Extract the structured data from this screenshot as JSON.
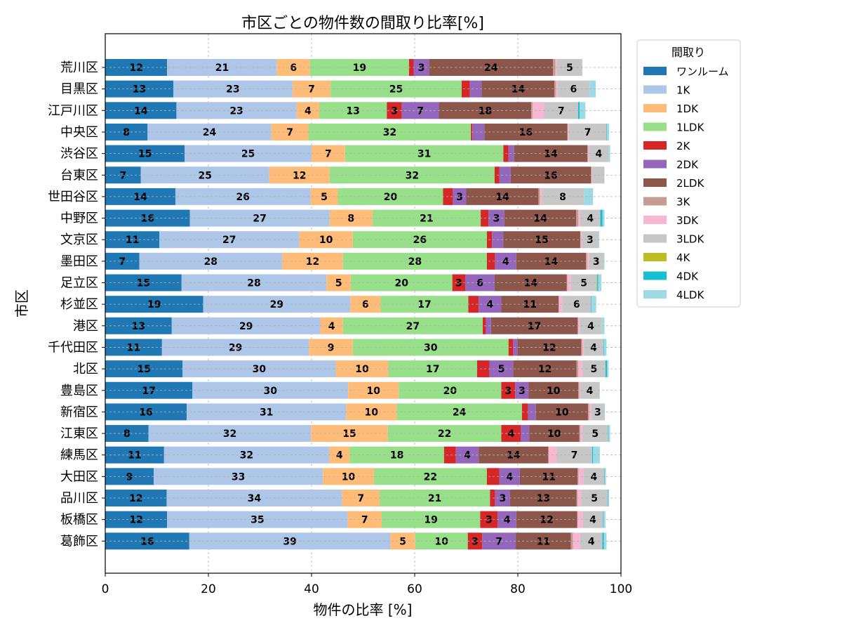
{
  "chart_data": {
    "type": "bar",
    "orientation": "horizontal",
    "stacked": true,
    "title": "市区ごとの物件数の間取り比率[%]",
    "xlabel": "物件の比率 [%]",
    "ylabel": "市区",
    "xlim": [
      0,
      100
    ],
    "xticks": [
      0,
      20,
      40,
      60,
      80,
      100
    ],
    "grid": true,
    "legend": {
      "title": "間取り",
      "placement": "outside-top-right"
    },
    "categories": [
      "荒川区",
      "目黒区",
      "江戸川区",
      "中央区",
      "渋谷区",
      "台東区",
      "世田谷区",
      "中野区",
      "文京区",
      "墨田区",
      "足立区",
      "杉並区",
      "港区",
      "千代田区",
      "北区",
      "豊島区",
      "新宿区",
      "江東区",
      "練馬区",
      "大田区",
      "品川区",
      "板橋区",
      "葛飾区"
    ],
    "series": [
      {
        "name": "ワンルーム",
        "color": "#1f77b4",
        "values": [
          12.0,
          13.2,
          13.8,
          8.2,
          15.4,
          6.9,
          13.6,
          16.4,
          10.5,
          6.6,
          14.8,
          19.0,
          12.9,
          11.0,
          15.0,
          16.9,
          15.8,
          8.4,
          11.4,
          9.4,
          11.9,
          12.0,
          16.3
        ]
      },
      {
        "name": "1K",
        "color": "#aec7e8",
        "values": [
          21.3,
          23.1,
          23.3,
          24.0,
          24.6,
          24.9,
          26.2,
          27.1,
          27.1,
          27.7,
          28.1,
          28.5,
          28.8,
          28.5,
          29.7,
          30.2,
          30.9,
          31.5,
          32.0,
          32.8,
          34.0,
          35.0,
          39.0
        ]
      },
      {
        "name": "1DK",
        "color": "#ffbb78",
        "values": [
          6.4,
          7.4,
          4.4,
          7.2,
          6.5,
          11.7,
          5.3,
          8.3,
          10.4,
          11.8,
          4.7,
          5.9,
          4.4,
          8.5,
          10.2,
          9.8,
          9.8,
          14.9,
          4.0,
          9.9,
          7.3,
          6.6,
          4.8
        ]
      },
      {
        "name": "1LDK",
        "color": "#98df8a",
        "values": [
          19.2,
          25.4,
          13.1,
          31.5,
          30.7,
          32.0,
          20.4,
          21.0,
          26.0,
          27.9,
          19.7,
          17.0,
          27.1,
          30.2,
          17.2,
          19.9,
          24.3,
          22.0,
          18.3,
          21.9,
          21.4,
          19.1,
          10.2
        ]
      },
      {
        "name": "2K",
        "color": "#d62728",
        "values": [
          0.9,
          1.6,
          2.9,
          0.3,
          1.0,
          0.9,
          1.9,
          1.5,
          1.0,
          1.6,
          2.5,
          2.0,
          0.6,
          0.9,
          2.4,
          2.7,
          1.2,
          3.8,
          2.3,
          2.4,
          1.0,
          3.4,
          2.8
        ]
      },
      {
        "name": "2DK",
        "color": "#9467bd",
        "values": [
          3.0,
          2.3,
          7.2,
          2.3,
          1.1,
          2.2,
          2.6,
          3.1,
          2.2,
          4.1,
          5.7,
          4.4,
          1.0,
          0.8,
          4.6,
          2.6,
          1.5,
          1.6,
          4.4,
          4.0,
          2.9,
          3.6,
          6.5
        ]
      },
      {
        "name": "2LDK",
        "color": "#8c564b",
        "values": [
          24.0,
          14.1,
          17.9,
          16.1,
          14.2,
          15.6,
          14.0,
          13.9,
          14.9,
          13.5,
          14.0,
          11.1,
          16.8,
          12.4,
          12.3,
          9.6,
          10.1,
          9.7,
          13.5,
          11.2,
          12.9,
          11.8,
          10.7
        ]
      },
      {
        "name": "3K",
        "color": "#c49c94",
        "values": [
          0.5,
          0.3,
          0.3,
          0.1,
          0.1,
          0.1,
          0.3,
          0.4,
          0.1,
          0.2,
          0.1,
          0.1,
          0.1,
          0.2,
          0.3,
          0.2,
          0.2,
          0.2,
          0.1,
          0.2,
          0.2,
          0.1,
          0.4
        ]
      },
      {
        "name": "3DK",
        "color": "#f7b6d2",
        "values": [
          0.3,
          0.3,
          2.2,
          0.2,
          0.2,
          0.1,
          0.3,
          0.4,
          0.2,
          0.4,
          0.7,
          0.6,
          0.3,
          0.3,
          0.8,
          0.2,
          0.4,
          0.4,
          1.5,
          0.9,
          0.7,
          1.0,
          1.4
        ]
      },
      {
        "name": "3LDK",
        "color": "#c7c7c7",
        "values": [
          4.9,
          6.2,
          6.6,
          7.3,
          3.8,
          2.4,
          8.2,
          3.9,
          3.2,
          2.8,
          5.0,
          5.6,
          4.3,
          3.8,
          4.5,
          3.7,
          2.6,
          5.0,
          6.9,
          4.1,
          5.1,
          3.9,
          4.3
        ]
      },
      {
        "name": "4K",
        "color": "#bcbd22",
        "values": [
          0.0,
          0.0,
          0.0,
          0.0,
          0.0,
          0.0,
          0.0,
          0.0,
          0.0,
          0.0,
          0.1,
          0.0,
          0.0,
          0.0,
          0.0,
          0.0,
          0.0,
          0.0,
          0.0,
          0.0,
          0.0,
          0.0,
          0.0
        ]
      },
      {
        "name": "4DK",
        "color": "#17becf",
        "values": [
          0.0,
          0.0,
          0.3,
          0.1,
          0.0,
          0.0,
          0.0,
          0.4,
          0.0,
          0.0,
          0.2,
          0.1,
          0.0,
          0.1,
          0.3,
          0.0,
          0.0,
          0.1,
          0.2,
          0.1,
          0.1,
          0.1,
          0.3
        ]
      },
      {
        "name": "4LDK",
        "color": "#9edae5",
        "values": [
          0.0,
          1.2,
          1.1,
          0.4,
          0.3,
          0.0,
          1.8,
          0.4,
          0.2,
          0.2,
          0.6,
          0.9,
          0.5,
          0.5,
          0.3,
          0.1,
          0.1,
          0.3,
          1.3,
          0.2,
          0.2,
          0.4,
          0.5
        ]
      }
    ],
    "label_threshold": 2.5
  }
}
